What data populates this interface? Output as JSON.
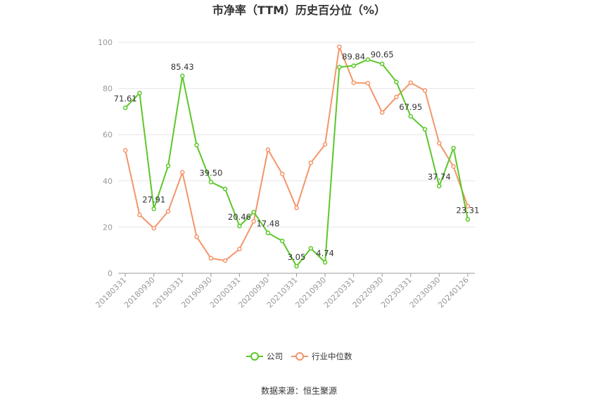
{
  "chart_data": {
    "type": "line",
    "title": "市净率（TTM）历史百分位（%）",
    "source": "数据来源：恒生聚源",
    "xlabel": "",
    "ylabel": "",
    "ylim": [
      0,
      100
    ],
    "yticks": [
      0,
      20,
      40,
      60,
      80,
      100
    ],
    "grid": true,
    "legend_position": "bottom-center",
    "x": [
      "20180331",
      "20180630",
      "20180930",
      "20181231",
      "20190331",
      "20190630",
      "20190930",
      "20191231",
      "20200331",
      "20200630",
      "20200930",
      "20201231",
      "20210331",
      "20210630",
      "20210930",
      "20211231",
      "20220331",
      "20220630",
      "20220930",
      "20221231",
      "20230331",
      "20230630",
      "20230930",
      "20231231",
      "20240126"
    ],
    "x_tick_labels": [
      "20180331",
      "20180930",
      "20190331",
      "20190930",
      "20200331",
      "20200930",
      "20210331",
      "20210930",
      "20220331",
      "20220930",
      "20230331",
      "20230930",
      "20240126"
    ],
    "x_tick_indices": [
      0,
      2,
      4,
      6,
      8,
      10,
      12,
      14,
      16,
      18,
      20,
      22,
      24
    ],
    "series": [
      {
        "name": "公司",
        "color": "#5cc72a",
        "values": [
          71.61,
          78.0,
          27.91,
          46.5,
          85.43,
          55.5,
          39.5,
          36.5,
          20.46,
          26.5,
          17.48,
          14.0,
          3.05,
          10.8,
          4.74,
          89.2,
          89.84,
          92.5,
          90.65,
          82.8,
          67.95,
          62.3,
          37.74,
          54.2,
          23.31
        ],
        "labels": {
          "0": "71.61",
          "2": "27.91",
          "4": "85.43",
          "6": "39.50",
          "8": "20.46",
          "10": "17.48",
          "12": "3.05",
          "14": "4.74",
          "16": "89.84",
          "18": "90.65",
          "20": "67.95",
          "22": "37.74",
          "24": "23.31"
        }
      },
      {
        "name": "行业中位数",
        "color": "#f4956a",
        "values": [
          53.2,
          25.3,
          19.5,
          26.8,
          43.7,
          15.8,
          6.5,
          5.5,
          10.5,
          22.5,
          53.5,
          43.0,
          28.3,
          47.8,
          55.8,
          98.0,
          82.5,
          82.3,
          69.6,
          76.3,
          82.5,
          79.1,
          56.3,
          46.2,
          29.0
        ]
      }
    ]
  }
}
